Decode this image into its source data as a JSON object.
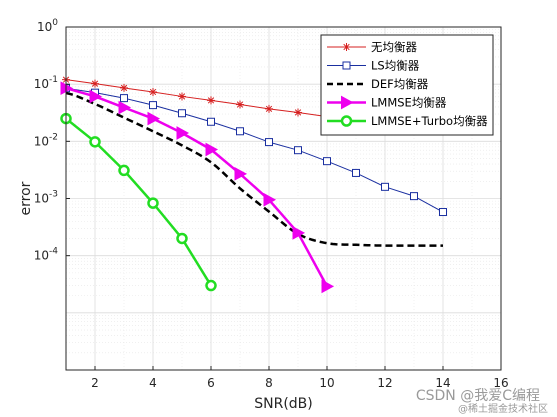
{
  "chart_data": {
    "type": "line",
    "xlabel": "SNR(dB)",
    "ylabel": "error",
    "xlim": [
      1,
      16
    ],
    "ylim_log10": [
      -6,
      0
    ],
    "yscale": "log",
    "grid": true,
    "minor_grid": true,
    "legend_position": "top-right",
    "xticks": [
      2,
      4,
      6,
      8,
      10,
      12,
      14,
      16
    ],
    "yticks": [
      {
        "base": "10",
        "exp": "0",
        "value": 1
      },
      {
        "base": "10",
        "exp": "-1",
        "value": 0.1
      },
      {
        "base": "10",
        "exp": "-2",
        "value": 0.01
      },
      {
        "base": "10",
        "exp": "-3",
        "value": 0.001
      },
      {
        "base": "10",
        "exp": "-4",
        "value": 0.0001
      }
    ],
    "series": [
      {
        "name": "无均衡器",
        "color": "#d62020",
        "marker": "asterisk",
        "line": "solid",
        "width": 1,
        "x": [
          1,
          2,
          3,
          4,
          5,
          6,
          7,
          8,
          9,
          10,
          11,
          12,
          13,
          14
        ],
        "y": [
          0.12,
          0.102,
          0.086,
          0.073,
          0.061,
          0.052,
          0.044,
          0.037,
          0.032,
          0.027,
          0.024,
          0.021,
          0.019,
          0.017
        ]
      },
      {
        "name": "LS均衡器",
        "color": "#1a2fa0",
        "marker": "square",
        "line": "solid",
        "width": 1,
        "x": [
          1,
          2,
          3,
          4,
          5,
          6,
          7,
          8,
          9,
          10,
          11,
          12,
          13,
          14
        ],
        "y": [
          0.085,
          0.071,
          0.057,
          0.043,
          0.031,
          0.022,
          0.015,
          0.0097,
          0.007,
          0.0045,
          0.0028,
          0.0016,
          0.0011,
          0.00058
        ]
      },
      {
        "name": "DEF均衡器",
        "color": "#000000",
        "marker": "none",
        "line": "dashed",
        "width": 2.5,
        "x": [
          1,
          2,
          3,
          4,
          5,
          6,
          7,
          8,
          9,
          10,
          11,
          12,
          13,
          14
        ],
        "y": [
          0.07,
          0.045,
          0.026,
          0.015,
          0.0085,
          0.0043,
          0.0015,
          0.00059,
          0.00024,
          0.000165,
          0.000155,
          0.00015,
          0.00015,
          0.00015
        ]
      },
      {
        "name": "LMMSE均衡器",
        "color": "#ee00ee",
        "marker": "triangle-right",
        "line": "solid",
        "width": 2.5,
        "x": [
          1,
          2,
          3,
          4,
          5,
          6,
          7,
          8,
          9,
          10
        ],
        "y": [
          0.085,
          0.061,
          0.039,
          0.025,
          0.014,
          0.0072,
          0.0027,
          0.00095,
          0.00025,
          2.9e-05
        ]
      },
      {
        "name": "LMMSE+Turbo均衡器",
        "color": "#22dd22",
        "marker": "circle",
        "line": "solid",
        "width": 2.5,
        "x": [
          1,
          2,
          3,
          4,
          5,
          6
        ],
        "y": [
          0.025,
          0.0098,
          0.0031,
          0.00083,
          0.0002,
          3e-05
        ]
      }
    ]
  },
  "watermark": {
    "text": "CSDN @我爱C编程",
    "subtext": "@稀土掘金技术社区"
  }
}
